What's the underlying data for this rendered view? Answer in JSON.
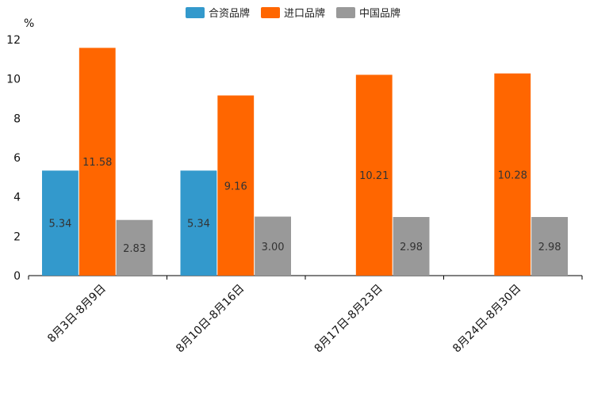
{
  "chart_data": {
    "type": "bar",
    "title": "",
    "xlabel": "",
    "ylabel": "%",
    "ylim": [
      0,
      12
    ],
    "yticks": [
      0,
      2,
      4,
      6,
      8,
      10,
      12
    ],
    "grid": false,
    "legend_position": "top-center",
    "categories": [
      "8月3日-8月9日",
      "8月10日-8月16日",
      "8月17日-8月23日",
      "8月24日-8月30日"
    ],
    "series": [
      {
        "name": "合资品牌",
        "color": "#3399cc",
        "values": [
          5.34,
          5.34,
          null,
          null
        ],
        "labels": [
          "5.34",
          "5.34",
          "",
          ""
        ]
      },
      {
        "name": "进口品牌",
        "color": "#ff6600",
        "values": [
          11.58,
          9.16,
          10.21,
          10.28
        ],
        "labels": [
          "11.58",
          "9.16",
          "10.21",
          "10.28"
        ]
      },
      {
        "name": "中国品牌",
        "color": "#999999",
        "values": [
          2.83,
          3.0,
          2.98,
          2.98
        ],
        "labels": [
          "2.83",
          "3.00",
          "2.98",
          "2.98"
        ]
      }
    ]
  }
}
